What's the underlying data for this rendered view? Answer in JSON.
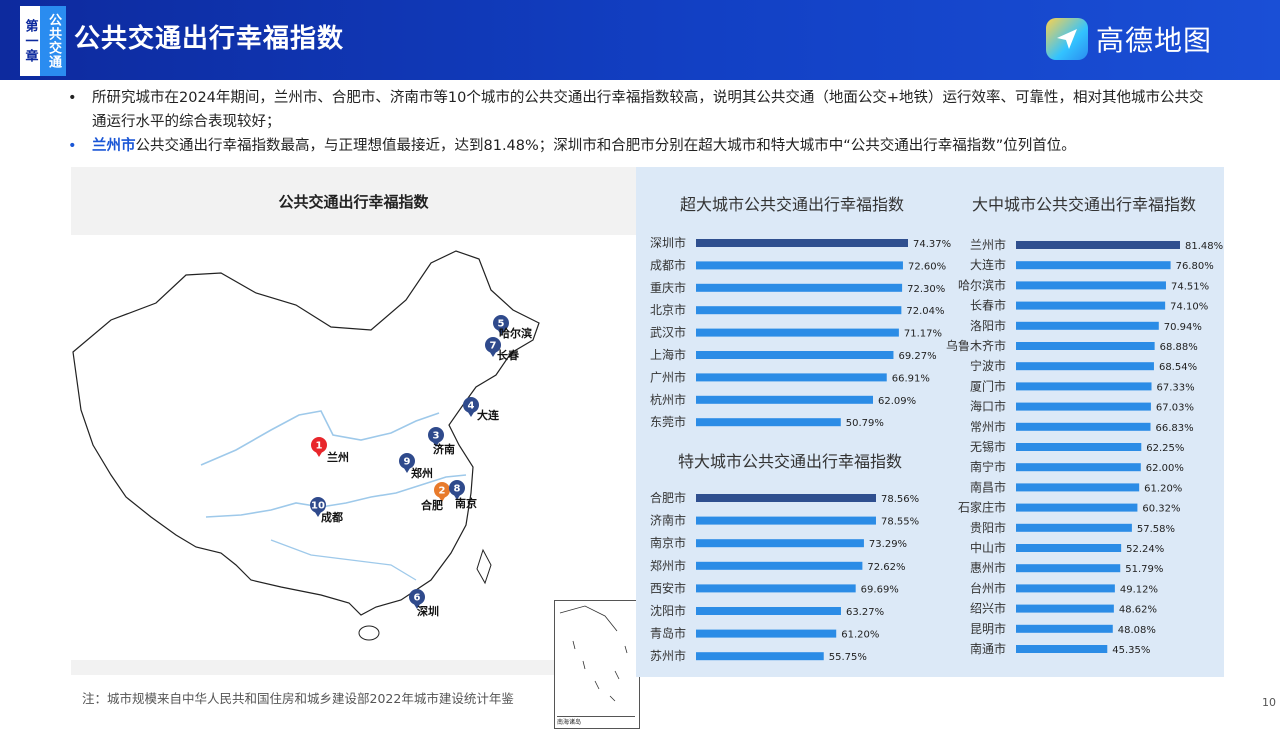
{
  "header": {
    "chapter_label": "第一章",
    "chapter_topic": "公共交通",
    "title": "公共交通出行幸福指数",
    "logo_text": "高德地图"
  },
  "bullets": [
    {
      "highlight": "",
      "text": "所研究城市在2024年期间，兰州市、合肥市、济南市等10个城市的公共交通出行幸福指数较高，说明其公共交通（地面公交+地铁）运行效率、可靠性，相对其他城市公共交通运行水平的综合表现较好；"
    },
    {
      "highlight": "兰州市",
      "text": "公共交通出行幸福指数最高，与正理想值最接近，达到81.48%；深圳市和合肥市分别在超大城市和特大城市中“公共交通出行幸福指数”位列首位。"
    }
  ],
  "map": {
    "title": "公共交通出行幸福指数",
    "inset_caption": "南海诸岛",
    "pins": [
      {
        "rank": "1",
        "city": "兰州",
        "color": "#e8262b"
      },
      {
        "rank": "2",
        "city": "合肥",
        "color": "#e87b2c"
      },
      {
        "rank": "3",
        "city": "济南",
        "color": "#2f4a8c"
      },
      {
        "rank": "4",
        "city": "大连",
        "color": "#2f4a8c"
      },
      {
        "rank": "5",
        "city": "哈尔滨",
        "color": "#2f4a8c"
      },
      {
        "rank": "6",
        "city": "深圳",
        "color": "#2f4a8c"
      },
      {
        "rank": "7",
        "city": "长春",
        "color": "#2f4a8c"
      },
      {
        "rank": "8",
        "city": "南京",
        "color": "#2f4a8c"
      },
      {
        "rank": "9",
        "city": "郑州",
        "color": "#2f4a8c"
      },
      {
        "rank": "10",
        "city": "成都",
        "color": "#2f4a8c"
      }
    ]
  },
  "chart_data": [
    {
      "type": "bar",
      "title": "超大城市公共交通出行幸福指数",
      "orientation": "horizontal",
      "unit": "%",
      "categories": [
        "深圳市",
        "成都市",
        "重庆市",
        "北京市",
        "武汉市",
        "上海市",
        "广州市",
        "杭州市",
        "东莞市"
      ],
      "values": [
        74.37,
        72.6,
        72.3,
        72.04,
        71.17,
        69.27,
        66.91,
        62.09,
        50.79
      ],
      "labels": [
        "74.37%",
        "72.60%",
        "72.30%",
        "72.04%",
        "71.17%",
        "69.27%",
        "66.91%",
        "62.09%",
        "50.79%"
      ],
      "colors": {
        "top": "#2f4f8f",
        "bar": "#2b8ce6"
      }
    },
    {
      "type": "bar",
      "title": "特大城市公共交通出行幸福指数",
      "orientation": "horizontal",
      "unit": "%",
      "categories": [
        "合肥市",
        "济南市",
        "南京市",
        "郑州市",
        "西安市",
        "沈阳市",
        "青岛市",
        "苏州市"
      ],
      "values": [
        78.56,
        78.55,
        73.29,
        72.62,
        69.69,
        63.27,
        61.2,
        55.75
      ],
      "labels": [
        "78.56%",
        "78.55%",
        "73.29%",
        "72.62%",
        "69.69%",
        "63.27%",
        "61.20%",
        "55.75%"
      ],
      "colors": {
        "top": "#2f4f8f",
        "bar": "#2b8ce6"
      }
    },
    {
      "type": "bar",
      "title": "大中城市公共交通出行幸福指数",
      "orientation": "horizontal",
      "unit": "%",
      "categories": [
        "兰州市",
        "大连市",
        "哈尔滨市",
        "长春市",
        "洛阳市",
        "乌鲁木齐市",
        "宁波市",
        "厦门市",
        "海口市",
        "常州市",
        "无锡市",
        "南宁市",
        "南昌市",
        "石家庄市",
        "贵阳市",
        "中山市",
        "惠州市",
        "台州市",
        "绍兴市",
        "昆明市",
        "南通市"
      ],
      "values": [
        81.48,
        76.8,
        74.51,
        74.1,
        70.94,
        68.88,
        68.54,
        67.33,
        67.03,
        66.83,
        62.25,
        62.0,
        61.2,
        60.32,
        57.58,
        52.24,
        51.79,
        49.12,
        48.62,
        48.08,
        45.35
      ],
      "labels": [
        "81.48%",
        "76.80%",
        "74.51%",
        "74.10%",
        "70.94%",
        "68.88%",
        "68.54%",
        "67.33%",
        "67.03%",
        "66.83%",
        "62.25%",
        "62.00%",
        "61.20%",
        "60.32%",
        "57.58%",
        "52.24%",
        "51.79%",
        "49.12%",
        "48.62%",
        "48.08%",
        "45.35%"
      ],
      "colors": {
        "top": "#2f4f8f",
        "bar": "#2b8ce6"
      }
    }
  ],
  "footnote": "注：城市规模来自中华人民共和国住房和城乡建设部2022年城市建设统计年鉴",
  "page_number": "10"
}
